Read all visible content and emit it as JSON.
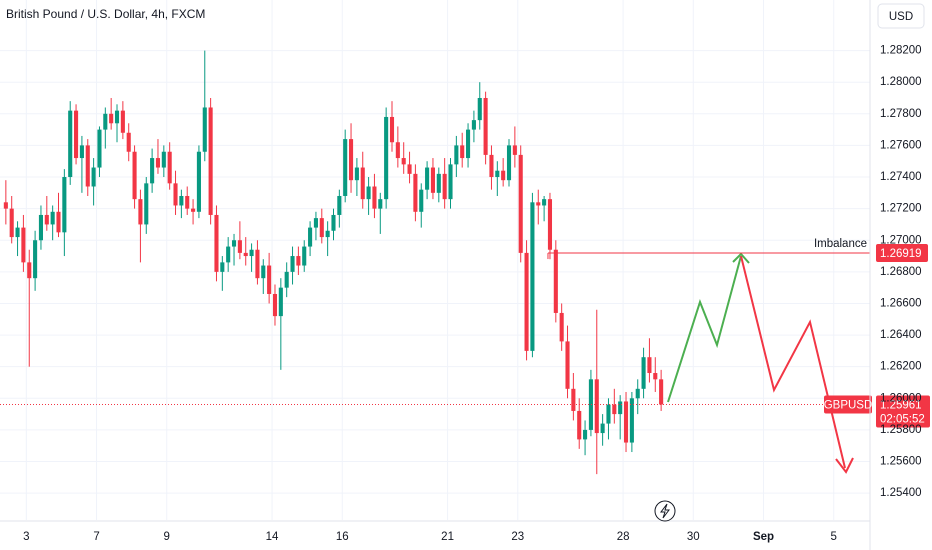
{
  "chart_data": {
    "type": "candlestick",
    "title": "British Pound / U.S. Dollar, 4h, FXCM",
    "currency": "USD",
    "up_color": "#089981",
    "down_color": "#f23645",
    "grid": true,
    "xlim": [
      -1,
      147.7
    ],
    "xticks": [
      {
        "value": 3.5,
        "label": "3"
      },
      {
        "value": 15.5,
        "label": "7"
      },
      {
        "value": 27.5,
        "label": "9"
      },
      {
        "value": 45.5,
        "label": "14"
      },
      {
        "value": 57.5,
        "label": "16"
      },
      {
        "value": 75.5,
        "label": "21"
      },
      {
        "value": 87.5,
        "label": "23"
      },
      {
        "value": 105.5,
        "label": "28"
      },
      {
        "value": 117.5,
        "label": "30"
      },
      {
        "value": 129.5,
        "label": "Sep"
      },
      {
        "value": 141.5,
        "label": "5"
      }
    ],
    "ylim": [
      1.2523,
      1.2852
    ],
    "yticks": [
      {
        "value": 1.282,
        "label": "1.28200"
      },
      {
        "value": 1.28,
        "label": "1.28000"
      },
      {
        "value": 1.278,
        "label": "1.27800"
      },
      {
        "value": 1.276,
        "label": "1.27600"
      },
      {
        "value": 1.274,
        "label": "1.27400"
      },
      {
        "value": 1.272,
        "label": "1.27200"
      },
      {
        "value": 1.27,
        "label": "1.27000"
      },
      {
        "value": 1.268,
        "label": "1.26800"
      },
      {
        "value": 1.266,
        "label": "1.26600"
      },
      {
        "value": 1.264,
        "label": "1.26400"
      },
      {
        "value": 1.262,
        "label": "1.26200"
      },
      {
        "value": 1.26,
        "label": "1.26000"
      },
      {
        "value": 1.258,
        "label": "1.25800"
      },
      {
        "value": 1.256,
        "label": "1.25600"
      },
      {
        "value": 1.254,
        "label": "1.25400"
      }
    ],
    "imbalance": {
      "label": "Imbalance",
      "price": 1.26919
    },
    "current": {
      "symbol": "GBPUSD",
      "price": 1.25961,
      "countdown": "02:05:52"
    },
    "candles": [
      [
        1.2724,
        1.2738,
        1.271,
        1.272
      ],
      [
        1.272,
        1.2728,
        1.2698,
        1.2702
      ],
      [
        1.2702,
        1.2712,
        1.269,
        1.2708
      ],
      [
        1.2708,
        1.2716,
        1.268,
        1.2686
      ],
      [
        1.2686,
        1.2694,
        1.262,
        1.2676
      ],
      [
        1.2676,
        1.2706,
        1.2668,
        1.27
      ],
      [
        1.27,
        1.2722,
        1.2694,
        1.2716
      ],
      [
        1.2716,
        1.2728,
        1.2706,
        1.271
      ],
      [
        1.271,
        1.2722,
        1.27,
        1.2718
      ],
      [
        1.2718,
        1.273,
        1.2702,
        1.2705
      ],
      [
        1.2705,
        1.2745,
        1.269,
        1.274
      ],
      [
        1.274,
        1.2788,
        1.2735,
        1.2782
      ],
      [
        1.2782,
        1.2786,
        1.2748,
        1.2752
      ],
      [
        1.2752,
        1.2766,
        1.273,
        1.276
      ],
      [
        1.276,
        1.2764,
        1.2728,
        1.2734
      ],
      [
        1.2734,
        1.2752,
        1.2722,
        1.2746
      ],
      [
        1.2746,
        1.2772,
        1.274,
        1.277
      ],
      [
        1.277,
        1.2784,
        1.2758,
        1.278
      ],
      [
        1.278,
        1.279,
        1.277,
        1.2774
      ],
      [
        1.2774,
        1.2786,
        1.2762,
        1.2782
      ],
      [
        1.2782,
        1.2788,
        1.2764,
        1.2768
      ],
      [
        1.2768,
        1.2774,
        1.275,
        1.2756
      ],
      [
        1.2756,
        1.276,
        1.272,
        1.2726
      ],
      [
        1.2726,
        1.2732,
        1.2686,
        1.271
      ],
      [
        1.271,
        1.274,
        1.2704,
        1.2736
      ],
      [
        1.2736,
        1.2758,
        1.273,
        1.2752
      ],
      [
        1.2752,
        1.2764,
        1.2742,
        1.2746
      ],
      [
        1.2746,
        1.276,
        1.274,
        1.2756
      ],
      [
        1.2756,
        1.2762,
        1.2732,
        1.2736
      ],
      [
        1.2736,
        1.2744,
        1.2716,
        1.2722
      ],
      [
        1.2722,
        1.2732,
        1.2714,
        1.2728
      ],
      [
        1.2728,
        1.2734,
        1.2716,
        1.272
      ],
      [
        1.272,
        1.2726,
        1.271,
        1.2718
      ],
      [
        1.2718,
        1.276,
        1.2714,
        1.2756
      ],
      [
        1.2756,
        1.282,
        1.275,
        1.2784
      ],
      [
        1.2784,
        1.279,
        1.271,
        1.2716
      ],
      [
        1.2716,
        1.2722,
        1.2674,
        1.268
      ],
      [
        1.268,
        1.269,
        1.2668,
        1.2686
      ],
      [
        1.2686,
        1.2702,
        1.268,
        1.2696
      ],
      [
        1.2696,
        1.2704,
        1.2684,
        1.27
      ],
      [
        1.27,
        1.2712,
        1.2688,
        1.2692
      ],
      [
        1.2692,
        1.2702,
        1.2684,
        1.269
      ],
      [
        1.269,
        1.2698,
        1.268,
        1.2694
      ],
      [
        1.2694,
        1.27,
        1.2672,
        1.2676
      ],
      [
        1.2676,
        1.2688,
        1.2666,
        1.2684
      ],
      [
        1.2684,
        1.2692,
        1.266,
        1.2666
      ],
      [
        1.2666,
        1.2672,
        1.2646,
        1.2652
      ],
      [
        1.2652,
        1.2676,
        1.2618,
        1.267
      ],
      [
        1.267,
        1.2686,
        1.2664,
        1.268
      ],
      [
        1.268,
        1.2696,
        1.2672,
        1.269
      ],
      [
        1.269,
        1.2696,
        1.2678,
        1.2684
      ],
      [
        1.2684,
        1.27,
        1.268,
        1.2696
      ],
      [
        1.2696,
        1.2712,
        1.269,
        1.2708
      ],
      [
        1.2708,
        1.2718,
        1.27,
        1.2714
      ],
      [
        1.2714,
        1.272,
        1.2698,
        1.2702
      ],
      [
        1.2702,
        1.2712,
        1.269,
        1.2706
      ],
      [
        1.2706,
        1.272,
        1.27,
        1.2716
      ],
      [
        1.2716,
        1.2732,
        1.2708,
        1.2728
      ],
      [
        1.2728,
        1.277,
        1.2724,
        1.2764
      ],
      [
        1.2764,
        1.2774,
        1.273,
        1.2738
      ],
      [
        1.2738,
        1.2752,
        1.2728,
        1.2746
      ],
      [
        1.2746,
        1.2756,
        1.272,
        1.2726
      ],
      [
        1.2726,
        1.274,
        1.2716,
        1.2734
      ],
      [
        1.2734,
        1.2742,
        1.2714,
        1.272
      ],
      [
        1.272,
        1.273,
        1.2704,
        1.2726
      ],
      [
        1.2726,
        1.2784,
        1.272,
        1.2778
      ],
      [
        1.2778,
        1.2788,
        1.2756,
        1.2762
      ],
      [
        1.2762,
        1.2772,
        1.2746,
        1.2752
      ],
      [
        1.2752,
        1.2762,
        1.2742,
        1.2748
      ],
      [
        1.2748,
        1.2756,
        1.2736,
        1.2742
      ],
      [
        1.2742,
        1.2748,
        1.2712,
        1.2718
      ],
      [
        1.2718,
        1.2736,
        1.2708,
        1.2732
      ],
      [
        1.2732,
        1.275,
        1.2726,
        1.2746
      ],
      [
        1.2746,
        1.2752,
        1.2726,
        1.273
      ],
      [
        1.273,
        1.2746,
        1.2724,
        1.2742
      ],
      [
        1.2742,
        1.2752,
        1.272,
        1.2726
      ],
      [
        1.2726,
        1.2752,
        1.272,
        1.2748
      ],
      [
        1.2748,
        1.2766,
        1.274,
        1.276
      ],
      [
        1.276,
        1.2768,
        1.2746,
        1.2752
      ],
      [
        1.2752,
        1.2774,
        1.2746,
        1.277
      ],
      [
        1.277,
        1.2782,
        1.2762,
        1.2776
      ],
      [
        1.2776,
        1.28,
        1.277,
        1.279
      ],
      [
        1.279,
        1.2794,
        1.2748,
        1.2754
      ],
      [
        1.2754,
        1.276,
        1.2732,
        1.274
      ],
      [
        1.274,
        1.275,
        1.2728,
        1.2744
      ],
      [
        1.2744,
        1.2752,
        1.2734,
        1.2738
      ],
      [
        1.2738,
        1.2764,
        1.2734,
        1.276
      ],
      [
        1.276,
        1.2772,
        1.2746,
        1.2754
      ],
      [
        1.2754,
        1.276,
        1.2686,
        1.2692
      ],
      [
        1.2692,
        1.27,
        1.2624,
        1.263
      ],
      [
        1.263,
        1.273,
        1.2626,
        1.2724
      ],
      [
        1.2724,
        1.2732,
        1.271,
        1.2722
      ],
      [
        1.2722,
        1.2728,
        1.2712,
        1.2726
      ],
      [
        1.2726,
        1.273,
        1.2688,
        1.2694
      ],
      [
        1.2694,
        1.27,
        1.2648,
        1.2654
      ],
      [
        1.2654,
        1.266,
        1.263,
        1.2636
      ],
      [
        1.2636,
        1.2646,
        1.26,
        1.2606
      ],
      [
        1.2606,
        1.2616,
        1.2586,
        1.2592
      ],
      [
        1.2592,
        1.26,
        1.2568,
        1.2574
      ],
      [
        1.2574,
        1.2586,
        1.2564,
        1.258
      ],
      [
        1.258,
        1.2618,
        1.2576,
        1.2612
      ],
      [
        1.2612,
        1.2656,
        1.2552,
        1.2578
      ],
      [
        1.2578,
        1.259,
        1.257,
        1.2584
      ],
      [
        1.2584,
        1.26,
        1.2574,
        1.2596
      ],
      [
        1.2596,
        1.2606,
        1.2584,
        1.259
      ],
      [
        1.259,
        1.2602,
        1.2574,
        1.2598
      ],
      [
        1.2598,
        1.2604,
        1.2566,
        1.2572
      ],
      [
        1.2572,
        1.2604,
        1.2566,
        1.26
      ],
      [
        1.26,
        1.2612,
        1.259,
        1.2606
      ],
      [
        1.2606,
        1.2632,
        1.26,
        1.2626
      ],
      [
        1.2626,
        1.2638,
        1.261,
        1.2616
      ],
      [
        1.2616,
        1.2626,
        1.2604,
        1.2612
      ],
      [
        1.2612,
        1.2618,
        1.2592,
        1.25961
      ]
    ]
  }
}
